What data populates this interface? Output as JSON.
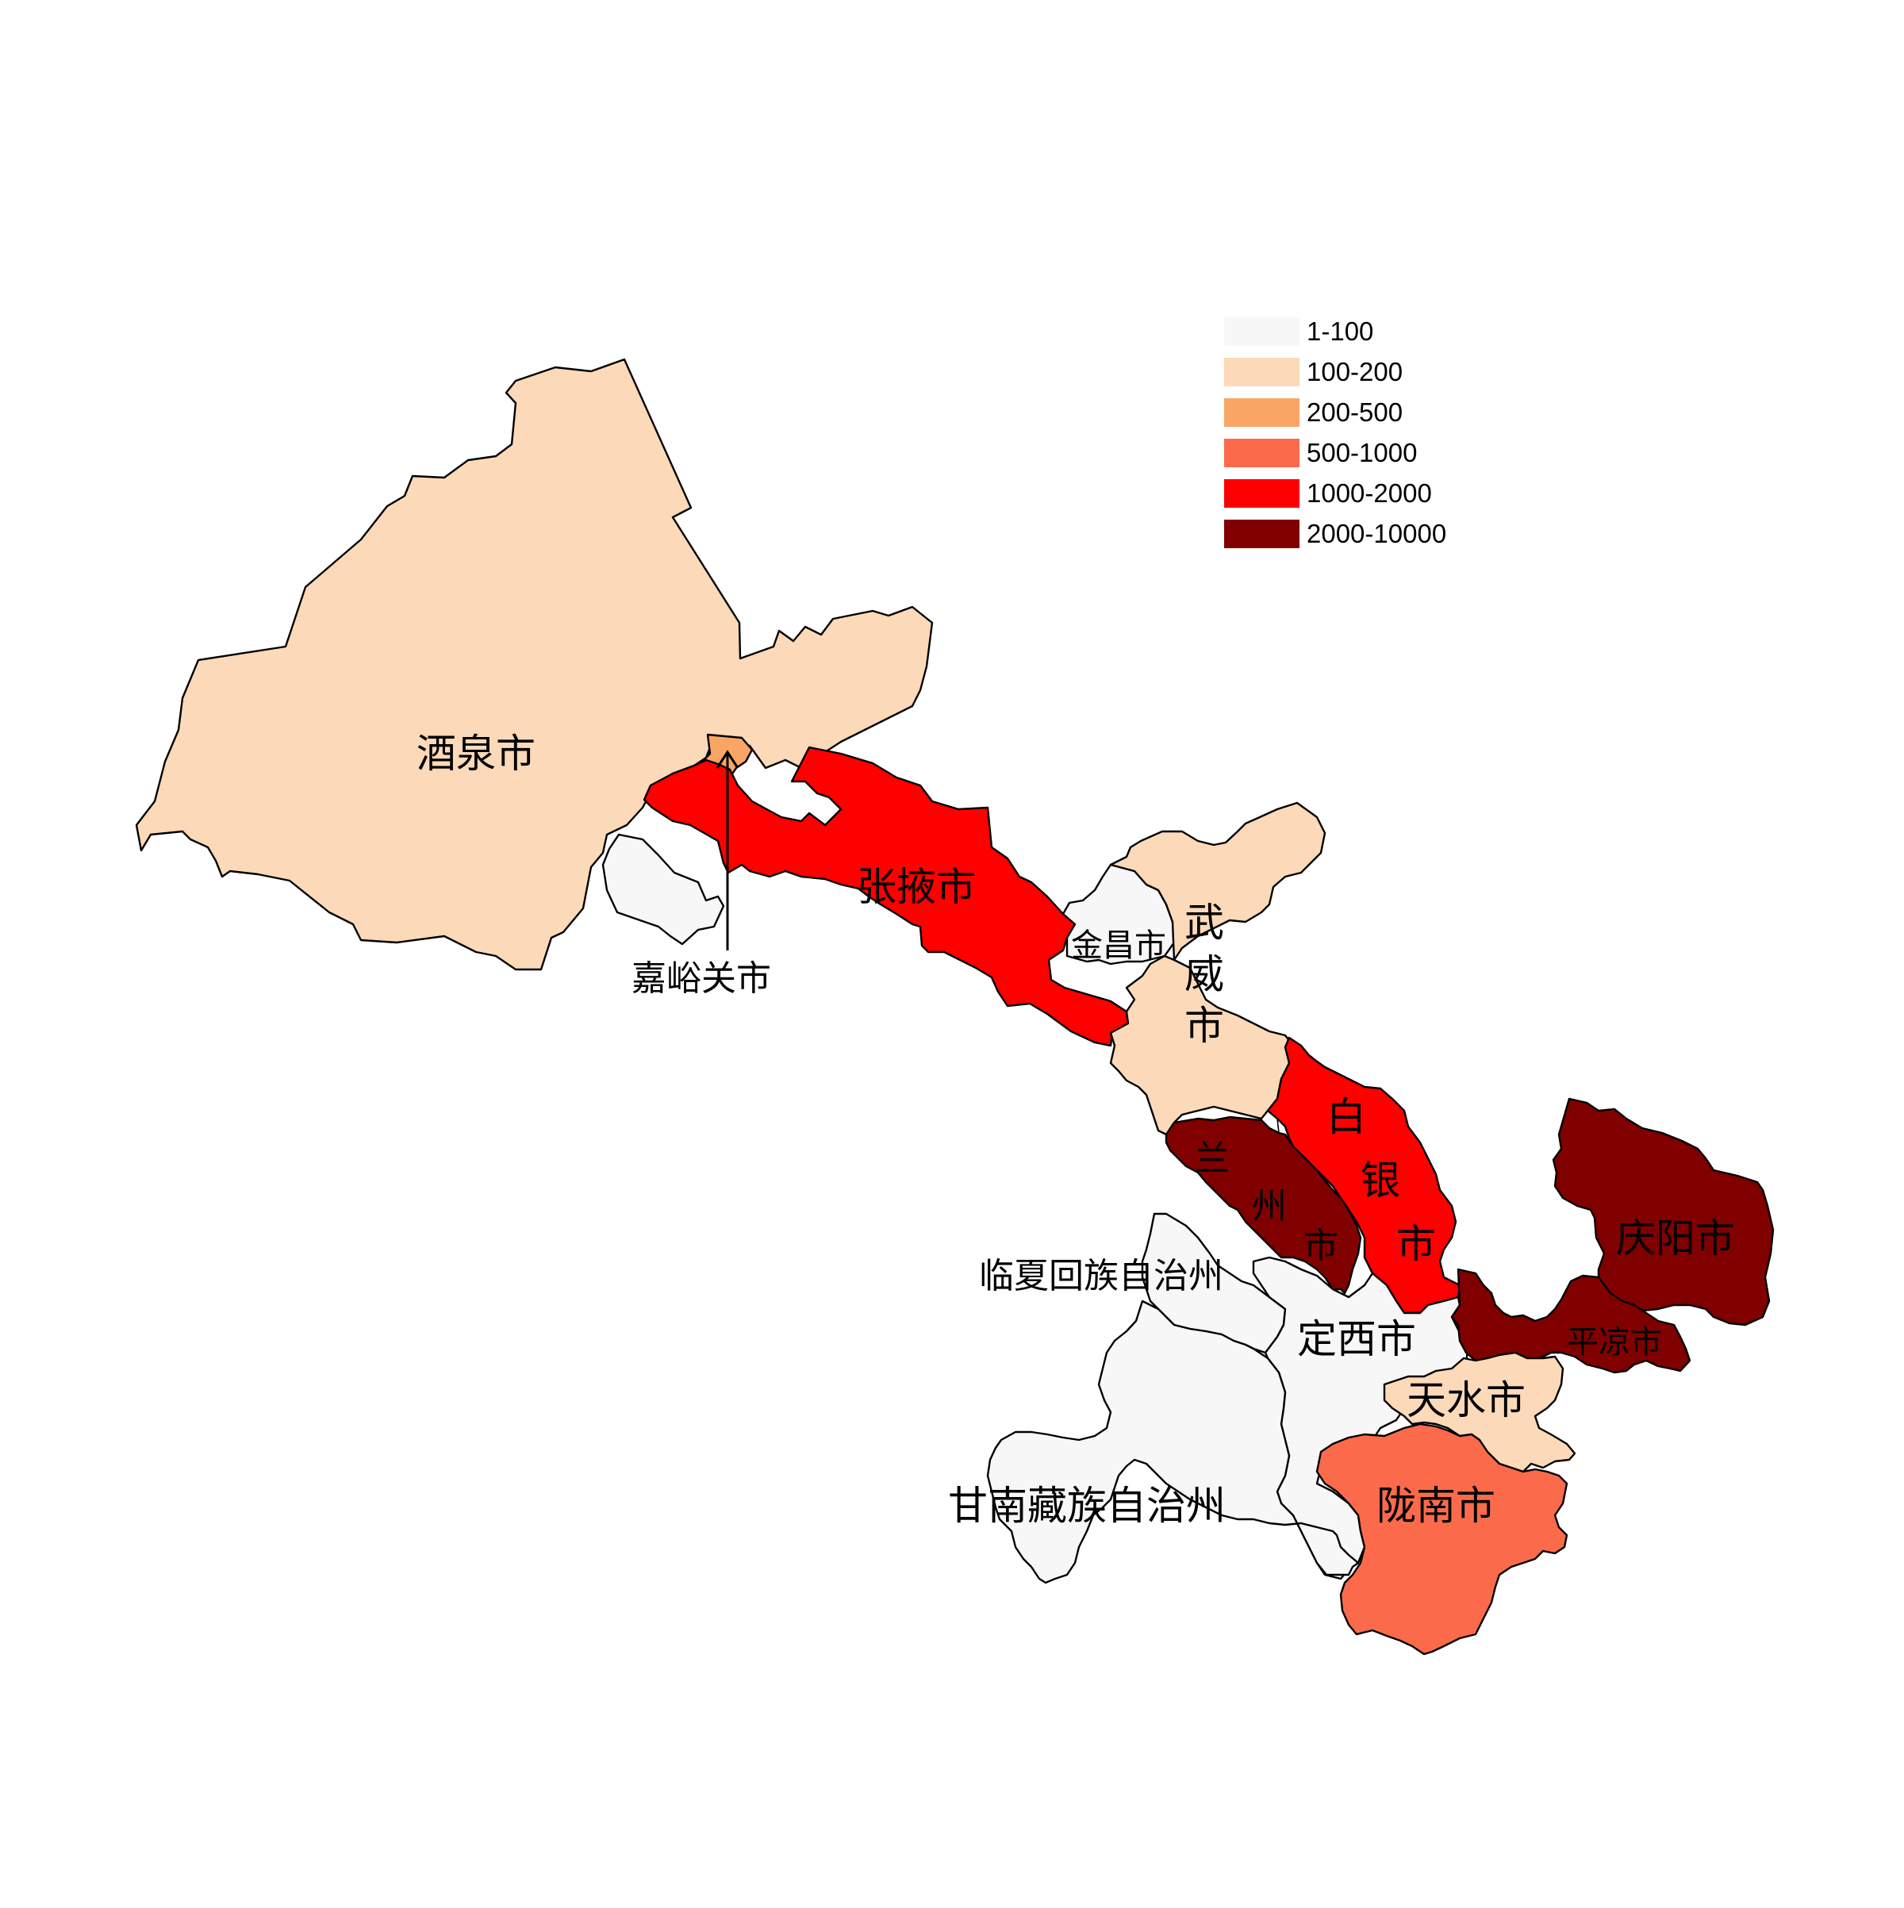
{
  "colors": {
    "c1": "#f7f7f7",
    "c2": "#fcd9b8",
    "c3": "#f9a566",
    "c4": "#fb6a4a",
    "c5": "#ff0000",
    "c6": "#800000"
  },
  "legend": {
    "items": [
      {
        "label": "1-100",
        "color": "#f7f7f7"
      },
      {
        "label": "100-200",
        "color": "#fcd9b8"
      },
      {
        "label": "200-500",
        "color": "#f9a566"
      },
      {
        "label": "500-1000",
        "color": "#fb6a4a"
      },
      {
        "label": "1000-2000",
        "color": "#ff0000"
      },
      {
        "label": "2000-10000",
        "color": "#800000"
      }
    ]
  },
  "regions": {
    "jiuquan": {
      "name": "酒泉市",
      "class": "100-200"
    },
    "jiayuguan": {
      "name": "嘉峪关市",
      "class": "200-500"
    },
    "zhangye": {
      "name": "张掖市",
      "class": "1000-2000"
    },
    "jinchang": {
      "name": "金昌市",
      "class": "1-100"
    },
    "wuwei": {
      "name": "武威市",
      "line1": "武",
      "line2": "威",
      "line3": "市",
      "class": "100-200"
    },
    "baiyin": {
      "name": "白银市",
      "line1": "白",
      "line2": "银",
      "line3": "市",
      "class": "1000-2000"
    },
    "lanzhou": {
      "name": "兰州市",
      "line1": "兰",
      "line2": "州",
      "line3": "市",
      "class": "2000-10000"
    },
    "linxia": {
      "name": "临夏回族自治州",
      "class": "1-100"
    },
    "dingxi": {
      "name": "定西市",
      "class": "1-100"
    },
    "qingyang": {
      "name": "庆阳市",
      "class": "2000-10000"
    },
    "pingliang": {
      "name": "平凉市",
      "class": "2000-10000"
    },
    "tianshui": {
      "name": "天水市",
      "class": "100-200"
    },
    "longnan": {
      "name": "陇南市",
      "class": "500-1000"
    },
    "gannan": {
      "name": "甘南藏族自治州",
      "class": "1-100"
    }
  }
}
